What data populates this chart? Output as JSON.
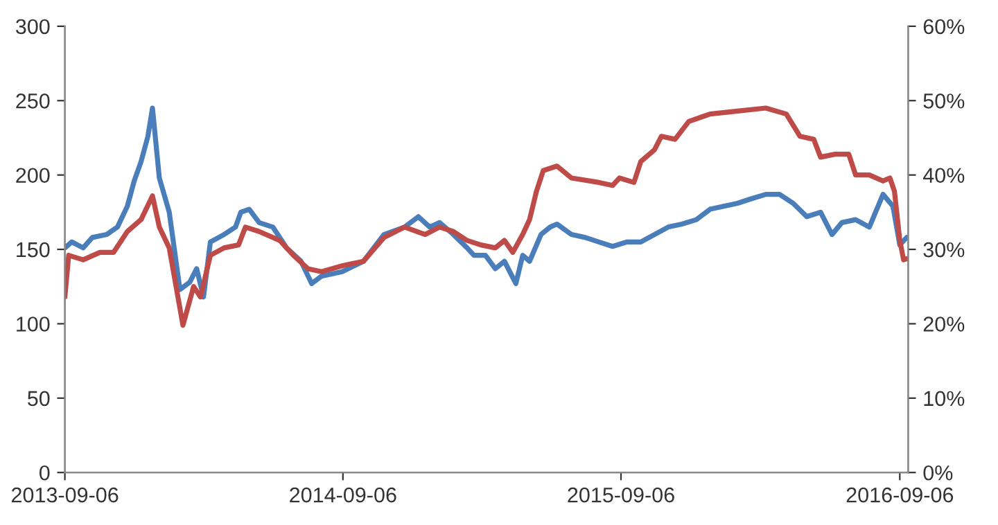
{
  "chart_data": {
    "type": "line",
    "xlim": [
      "2013-09-06",
      "2016-09-17"
    ],
    "xticks": [
      "2013-09-06",
      "2014-09-06",
      "2015-09-06",
      "2016-09-06"
    ],
    "ylim": [
      0,
      300
    ],
    "yticks": [
      0,
      50,
      100,
      150,
      200,
      250,
      300
    ],
    "y2lim": [
      0,
      60
    ],
    "y2ticks": [
      {
        "value": 0,
        "label": "0%"
      },
      {
        "value": 10,
        "label": "10%"
      },
      {
        "value": 20,
        "label": "20%"
      },
      {
        "value": 30,
        "label": "30%"
      },
      {
        "value": 40,
        "label": "40%"
      },
      {
        "value": 50,
        "label": "50%"
      },
      {
        "value": 60,
        "label": "60%"
      }
    ],
    "series": [
      {
        "color": "#4a7ebb",
        "axis": "y",
        "x": [
          "2013-09-06",
          "2013-09-15",
          "2013-09-30",
          "2013-10-12",
          "2013-10-31",
          "2013-11-14",
          "2013-11-27",
          "2013-12-06",
          "2013-12-15",
          "2013-12-24",
          "2013-12-30",
          "2014-01-08",
          "2014-01-21",
          "2014-02-04",
          "2014-02-17",
          "2014-02-26",
          "2014-03-07",
          "2014-03-16",
          "2014-04-03",
          "2014-04-18",
          "2014-04-25",
          "2014-05-06",
          "2014-05-19",
          "2014-06-06",
          "2014-06-24",
          "2014-07-13",
          "2014-07-27",
          "2014-08-09",
          "2014-09-05",
          "2014-10-03",
          "2014-10-30",
          "2014-11-26",
          "2014-12-14",
          "2014-12-29",
          "2015-01-11",
          "2015-01-29",
          "2015-02-16",
          "2015-02-25",
          "2015-03-12",
          "2015-03-25",
          "2015-04-06",
          "2015-04-21",
          "2015-04-30",
          "2015-05-09",
          "2015-05-24",
          "2015-06-05",
          "2015-06-14",
          "2015-07-03",
          "2015-07-21",
          "2015-08-08",
          "2015-08-26",
          "2015-09-14",
          "2015-10-02",
          "2015-10-20",
          "2015-11-07",
          "2015-11-25",
          "2015-12-14",
          "2016-01-01",
          "2016-01-19",
          "2016-02-06",
          "2016-02-24",
          "2016-03-14",
          "2016-04-01",
          "2016-04-19",
          "2016-05-07",
          "2016-05-25",
          "2016-06-09",
          "2016-06-22",
          "2016-07-10",
          "2016-07-28",
          "2016-08-15",
          "2016-08-28",
          "2016-09-06",
          "2016-09-15"
        ],
        "values": [
          151,
          155,
          151,
          158,
          160,
          165,
          179,
          196,
          209,
          226,
          245,
          198,
          175,
          123,
          128,
          137,
          118,
          155,
          160,
          165,
          175,
          177,
          168,
          165,
          151,
          142,
          127,
          132,
          135,
          142,
          160,
          165,
          172,
          165,
          168,
          160,
          151,
          146,
          146,
          137,
          142,
          127,
          146,
          142,
          160,
          165,
          167,
          160,
          158,
          155,
          152,
          155,
          155,
          160,
          165,
          167,
          170,
          177,
          179,
          181,
          184,
          187,
          187,
          181,
          172,
          175,
          160,
          168,
          170,
          165,
          187,
          179,
          153,
          158
        ]
      },
      {
        "color": "#be4b48",
        "axis": "y2",
        "x": [
          "2013-09-06",
          "2013-09-11",
          "2013-09-30",
          "2013-10-22",
          "2013-11-09",
          "2013-11-27",
          "2013-12-15",
          "2013-12-30",
          "2014-01-08",
          "2014-01-21",
          "2014-02-08",
          "2014-02-22",
          "2014-03-03",
          "2014-03-16",
          "2014-04-03",
          "2014-04-22",
          "2014-05-01",
          "2014-05-19",
          "2014-06-15",
          "2014-07-03",
          "2014-07-22",
          "2014-08-09",
          "2014-09-05",
          "2014-10-03",
          "2014-10-30",
          "2014-11-26",
          "2014-12-23",
          "2015-01-11",
          "2015-01-29",
          "2015-02-16",
          "2015-03-06",
          "2015-03-25",
          "2015-04-06",
          "2015-04-17",
          "2015-04-30",
          "2015-05-09",
          "2015-05-18",
          "2015-05-27",
          "2015-06-14",
          "2015-07-03",
          "2015-08-08",
          "2015-08-26",
          "2015-09-04",
          "2015-09-23",
          "2015-10-02",
          "2015-10-20",
          "2015-10-29",
          "2015-11-16",
          "2015-12-04",
          "2016-01-01",
          "2016-02-06",
          "2016-03-14",
          "2016-04-10",
          "2016-04-28",
          "2016-05-16",
          "2016-05-25",
          "2016-06-13",
          "2016-07-01",
          "2016-07-10",
          "2016-07-28",
          "2016-08-15",
          "2016-08-24",
          "2016-08-30",
          "2016-09-06",
          "2016-09-11",
          "2016-09-17"
        ],
        "values": [
          23.6,
          29.2,
          28.6,
          29.6,
          29.6,
          32.4,
          34,
          37.2,
          33,
          30.2,
          19.8,
          25,
          23.6,
          29.2,
          30.2,
          30.6,
          33,
          32.4,
          31.2,
          29.2,
          27.4,
          27,
          27.8,
          28.4,
          31.6,
          33,
          32,
          33,
          32.4,
          31.2,
          30.6,
          30.2,
          31.2,
          29.6,
          32,
          34,
          37.8,
          40.6,
          41.2,
          39.6,
          39,
          38.6,
          39.6,
          39,
          41.8,
          43.4,
          45.2,
          44.8,
          47.2,
          48.2,
          48.6,
          49,
          48.2,
          45.2,
          44.8,
          42.4,
          42.8,
          42.8,
          40,
          40,
          39.2,
          39.6,
          37.8,
          31.2,
          28.6,
          28.8
        ]
      }
    ]
  }
}
